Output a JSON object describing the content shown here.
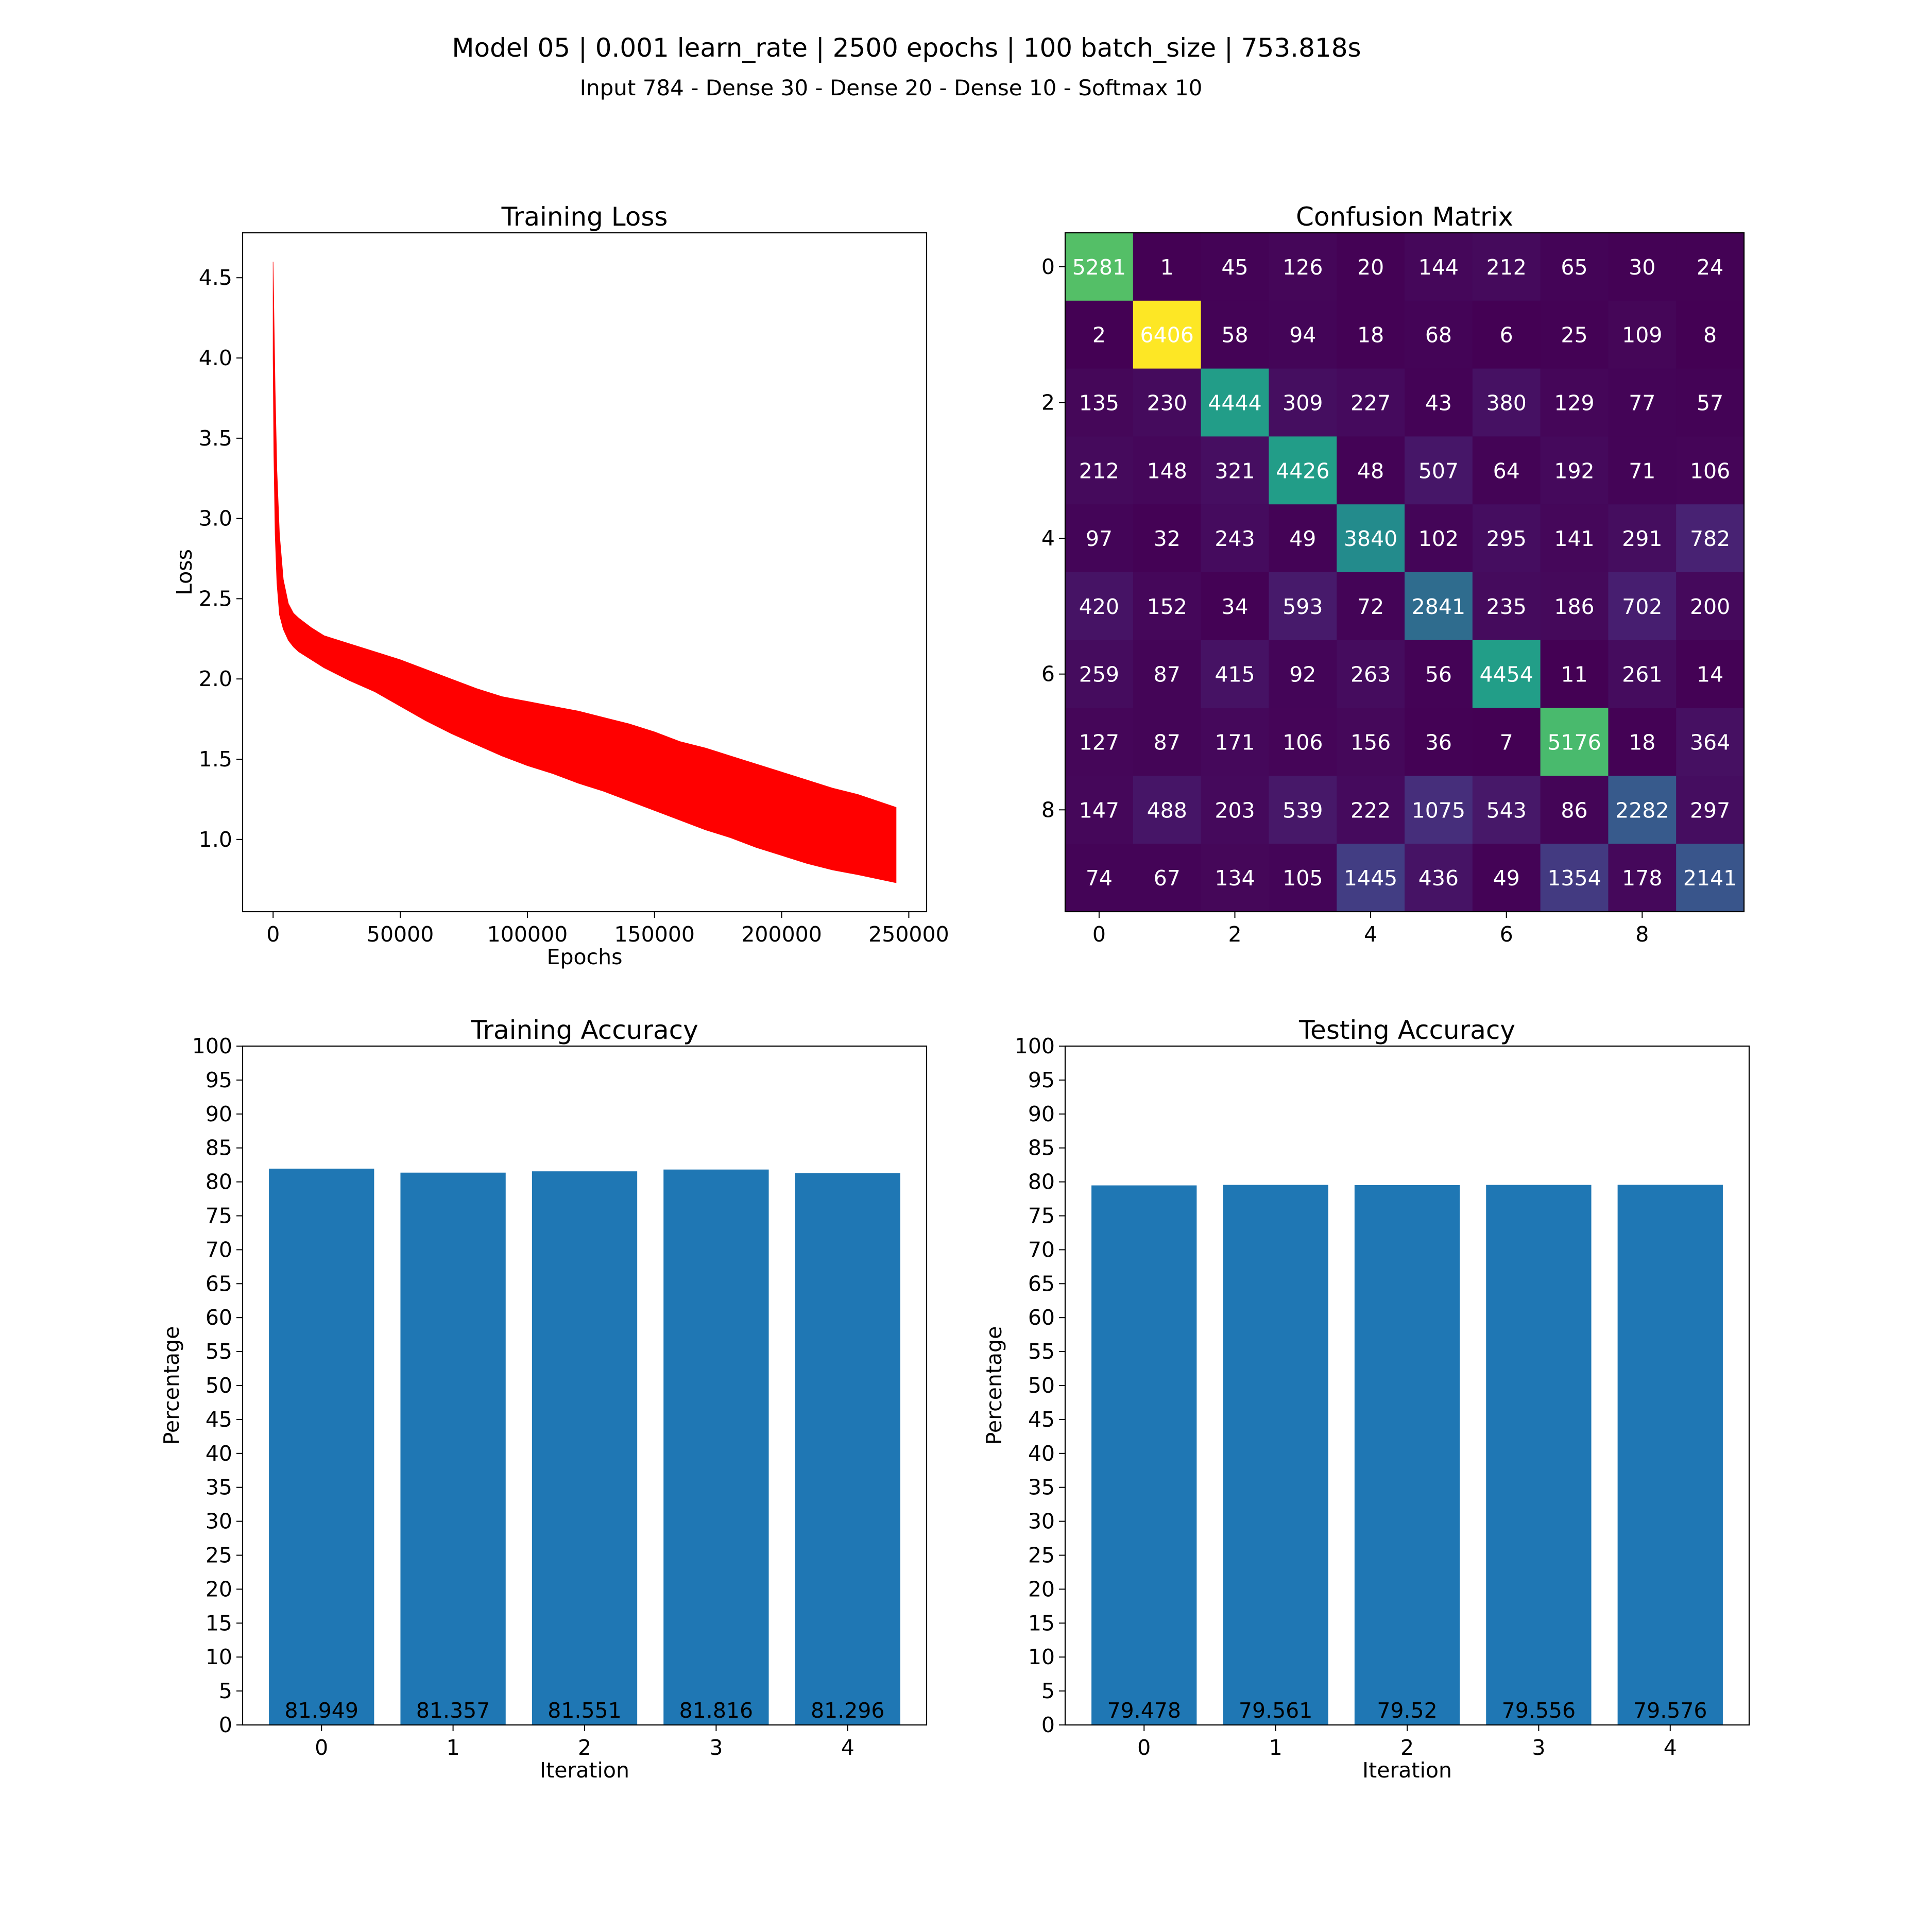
{
  "figure": {
    "title": "Model 05 | 0.001 learn_rate | 2500 epochs | 100 batch_size | 753.818s",
    "subtitle": "Input 784 - Dense 30 - Dense 20 - Dense 10 - Softmax 10"
  },
  "chart_data": [
    {
      "type": "area",
      "title": "Training Loss",
      "xlabel": "Epochs",
      "ylabel": "Loss",
      "color": "#ff0000",
      "xlim": [
        -12000,
        257000
      ],
      "ylim": [
        0.55,
        4.78
      ],
      "xticks": [
        0,
        50000,
        100000,
        150000,
        200000,
        250000
      ],
      "yticks": [
        1.0,
        1.5,
        2.0,
        2.5,
        3.0,
        3.5,
        4.0,
        4.5
      ],
      "upper": {
        "x": [
          0,
          300,
          800,
          1500,
          2500,
          4000,
          6000,
          8000,
          10000,
          15000,
          20000,
          30000,
          40000,
          50000,
          60000,
          70000,
          80000,
          90000,
          100000,
          110000,
          120000,
          130000,
          140000,
          150000,
          160000,
          170000,
          180000,
          190000,
          200000,
          210000,
          220000,
          230000,
          245000
        ],
        "y": [
          4.6,
          4.3,
          3.8,
          3.3,
          2.9,
          2.62,
          2.47,
          2.41,
          2.38,
          2.32,
          2.27,
          2.22,
          2.17,
          2.12,
          2.06,
          2.0,
          1.94,
          1.89,
          1.86,
          1.83,
          1.8,
          1.76,
          1.72,
          1.67,
          1.61,
          1.57,
          1.52,
          1.47,
          1.42,
          1.37,
          1.32,
          1.28,
          1.2
        ]
      },
      "lower": {
        "x": [
          0,
          300,
          800,
          1500,
          2500,
          4000,
          6000,
          8000,
          10000,
          15000,
          20000,
          30000,
          40000,
          50000,
          60000,
          70000,
          80000,
          90000,
          100000,
          110000,
          120000,
          130000,
          140000,
          150000,
          160000,
          170000,
          180000,
          190000,
          200000,
          210000,
          220000,
          230000,
          245000
        ],
        "y": [
          4.0,
          3.4,
          2.9,
          2.6,
          2.4,
          2.31,
          2.24,
          2.2,
          2.17,
          2.12,
          2.07,
          1.99,
          1.92,
          1.83,
          1.74,
          1.66,
          1.59,
          1.52,
          1.46,
          1.41,
          1.35,
          1.3,
          1.24,
          1.18,
          1.12,
          1.06,
          1.01,
          0.95,
          0.9,
          0.85,
          0.81,
          0.78,
          0.73
        ]
      }
    },
    {
      "type": "heatmap",
      "title": "Confusion Matrix",
      "xticks": [
        "0",
        "2",
        "4",
        "6",
        "8"
      ],
      "yticks": [
        "0",
        "2",
        "4",
        "6",
        "8"
      ],
      "vmin": 1,
      "vmax": 6406,
      "matrix": [
        [
          5281,
          1,
          45,
          126,
          20,
          144,
          212,
          65,
          30,
          24
        ],
        [
          2,
          6406,
          58,
          94,
          18,
          68,
          6,
          25,
          109,
          8
        ],
        [
          135,
          230,
          4444,
          309,
          227,
          43,
          380,
          129,
          77,
          57
        ],
        [
          212,
          148,
          321,
          4426,
          48,
          507,
          64,
          192,
          71,
          106
        ],
        [
          97,
          32,
          243,
          49,
          3840,
          102,
          295,
          141,
          291,
          782
        ],
        [
          420,
          152,
          34,
          593,
          72,
          2841,
          235,
          186,
          702,
          200
        ],
        [
          259,
          87,
          415,
          92,
          263,
          56,
          4454,
          11,
          261,
          14
        ],
        [
          127,
          87,
          171,
          106,
          156,
          36,
          7,
          5176,
          18,
          364
        ],
        [
          147,
          488,
          203,
          539,
          222,
          1075,
          543,
          86,
          2282,
          297
        ],
        [
          74,
          67,
          134,
          105,
          1445,
          436,
          49,
          1354,
          178,
          2141
        ]
      ]
    },
    {
      "type": "bar",
      "title": "Training Accuracy",
      "xlabel": "Iteration",
      "ylabel": "Percentage",
      "color": "#1f77b4",
      "categories": [
        "0",
        "1",
        "2",
        "3",
        "4"
      ],
      "values": [
        81.949,
        81.357,
        81.551,
        81.816,
        81.296
      ],
      "labels": [
        "81.949",
        "81.357",
        "81.551",
        "81.816",
        "81.296"
      ],
      "ylim": [
        0,
        100
      ],
      "yticks": [
        0,
        5,
        10,
        15,
        20,
        25,
        30,
        35,
        40,
        45,
        50,
        55,
        60,
        65,
        70,
        75,
        80,
        85,
        90,
        95,
        100
      ]
    },
    {
      "type": "bar",
      "title": "Testing Accuracy",
      "xlabel": "Iteration",
      "ylabel": "Percentage",
      "color": "#1f77b4",
      "categories": [
        "0",
        "1",
        "2",
        "3",
        "4"
      ],
      "values": [
        79.478,
        79.561,
        79.52,
        79.556,
        79.576
      ],
      "labels": [
        "79.478",
        "79.561",
        "79.52",
        "79.556",
        "79.576"
      ],
      "ylim": [
        0,
        100
      ],
      "yticks": [
        0,
        5,
        10,
        15,
        20,
        25,
        30,
        35,
        40,
        45,
        50,
        55,
        60,
        65,
        70,
        75,
        80,
        85,
        90,
        95,
        100
      ]
    }
  ]
}
